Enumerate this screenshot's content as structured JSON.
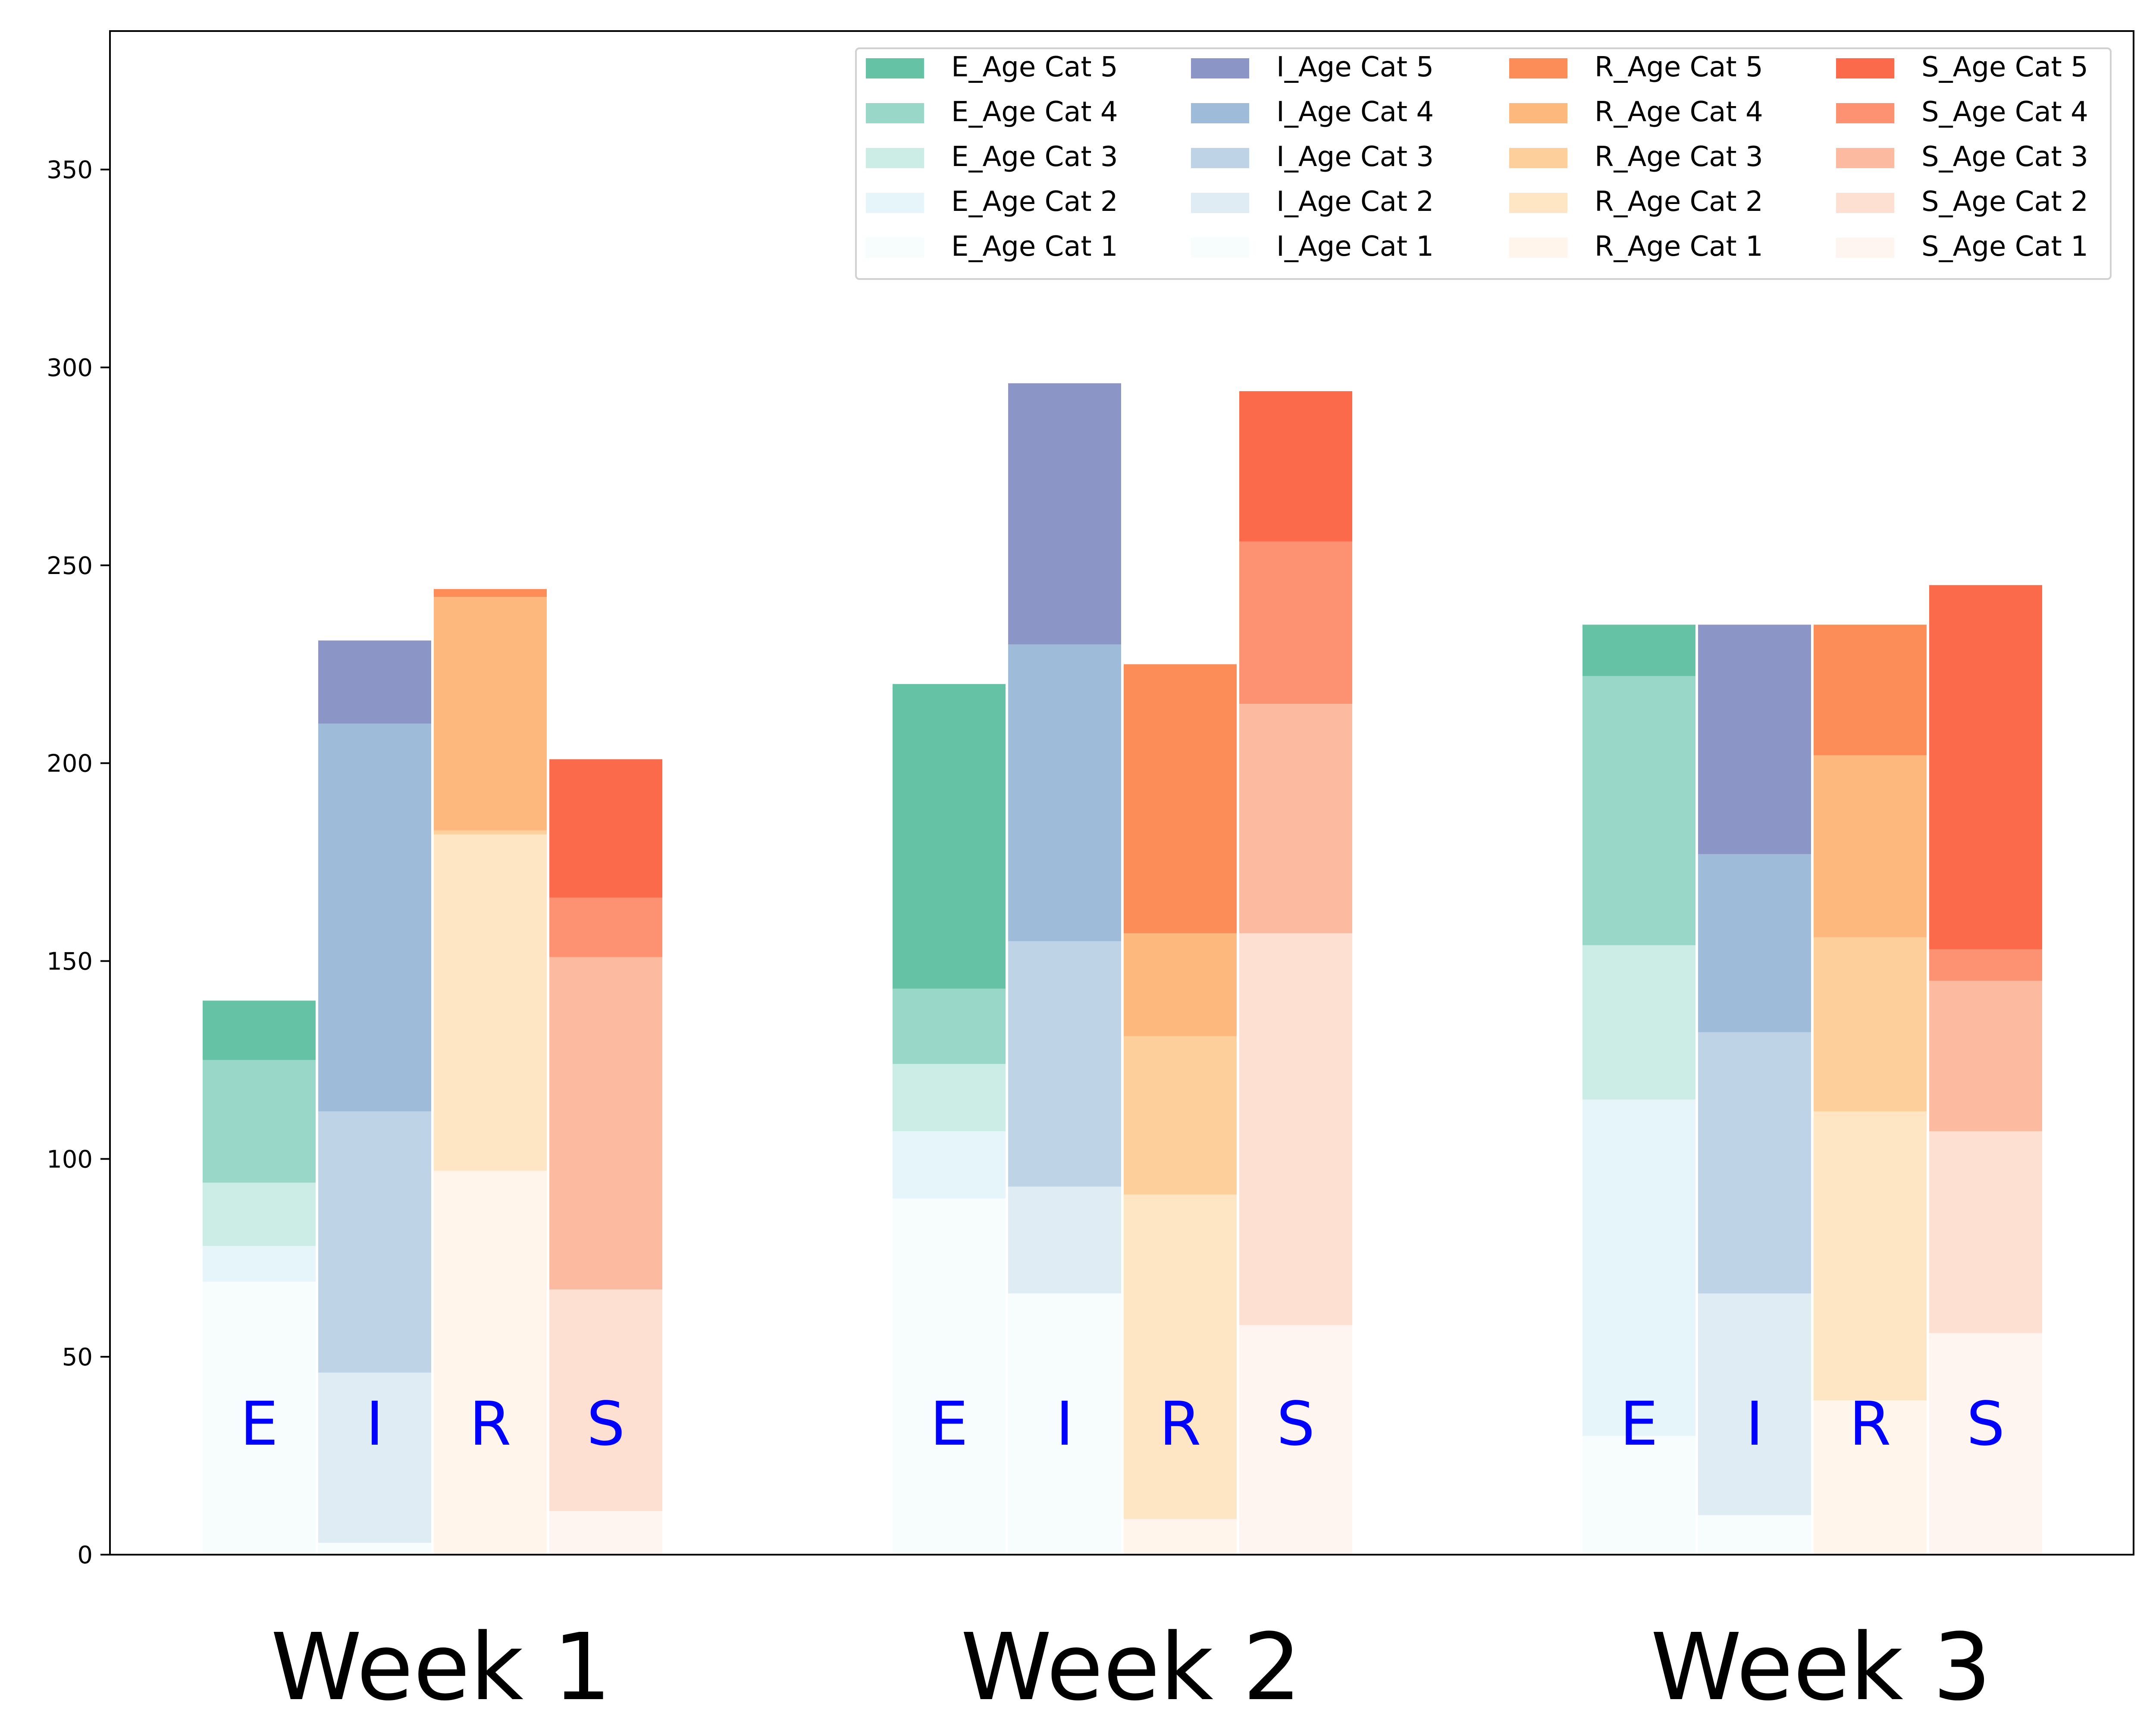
{
  "chart_data": {
    "type": "bar",
    "stacked": true,
    "grouped": true,
    "categories": [
      "Week 1",
      "Week 2",
      "Week 3"
    ],
    "bar_groups": [
      "E",
      "I",
      "R",
      "S"
    ],
    "age_categories": [
      "Age Cat 1",
      "Age Cat 2",
      "Age Cat 3",
      "Age Cat 4",
      "Age Cat 5"
    ],
    "ylim": [
      0,
      385
    ],
    "yticks": [
      0,
      50,
      100,
      150,
      200,
      250,
      300,
      350
    ],
    "xlabel": "",
    "ylabel": "",
    "title": "",
    "legend_position": "top-right",
    "grid": false,
    "colors": {
      "E": [
        "#f7fcfd",
        "#e5f5f9",
        "#ccece6",
        "#99d8c9",
        "#66c2a4"
      ],
      "I": [
        "#f7fcfd",
        "#e0ecf4",
        "#bfd3e6",
        "#9ebcda",
        "#8c96c6"
      ],
      "R": [
        "#fff5eb",
        "#fee6c4",
        "#fdd09b",
        "#fdb97d",
        "#fc8d59"
      ],
      "S": [
        "#fff5f0",
        "#fee0d2",
        "#fcbba1",
        "#fc9272",
        "#fb6a4a"
      ]
    },
    "data": {
      "E": [
        [
          69,
          9,
          16,
          31,
          15
        ],
        [
          90,
          17,
          17,
          19,
          77
        ],
        [
          30,
          85,
          39,
          68,
          13
        ]
      ],
      "I": [
        [
          3,
          43,
          66,
          98,
          21
        ],
        [
          66,
          27,
          62,
          75,
          66
        ],
        [
          10,
          56,
          66,
          45,
          58
        ]
      ],
      "R": [
        [
          97,
          85,
          1,
          59,
          2
        ],
        [
          9,
          82,
          40,
          26,
          68
        ],
        [
          39,
          73,
          44,
          46,
          33
        ]
      ],
      "S": [
        [
          11,
          56,
          84,
          15,
          35
        ],
        [
          58,
          99,
          58,
          41,
          38
        ],
        [
          56,
          51,
          38,
          8,
          92
        ]
      ]
    },
    "legend": [
      [
        "E_Age Cat 5",
        "I_Age Cat 5",
        "R_Age Cat 5",
        "S_Age Cat 5"
      ],
      [
        "E_Age Cat 4",
        "I_Age Cat 4",
        "R_Age Cat 4",
        "S_Age Cat 4"
      ],
      [
        "E_Age Cat 3",
        "I_Age Cat 3",
        "R_Age Cat 3",
        "S_Age Cat 3"
      ],
      [
        "E_Age Cat 2",
        "I_Age Cat 2",
        "R_Age Cat 2",
        "S_Age Cat 2"
      ],
      [
        "E_Age Cat 1",
        "I_Age Cat 1",
        "R_Age Cat 1",
        "S_Age Cat 1"
      ]
    ]
  }
}
